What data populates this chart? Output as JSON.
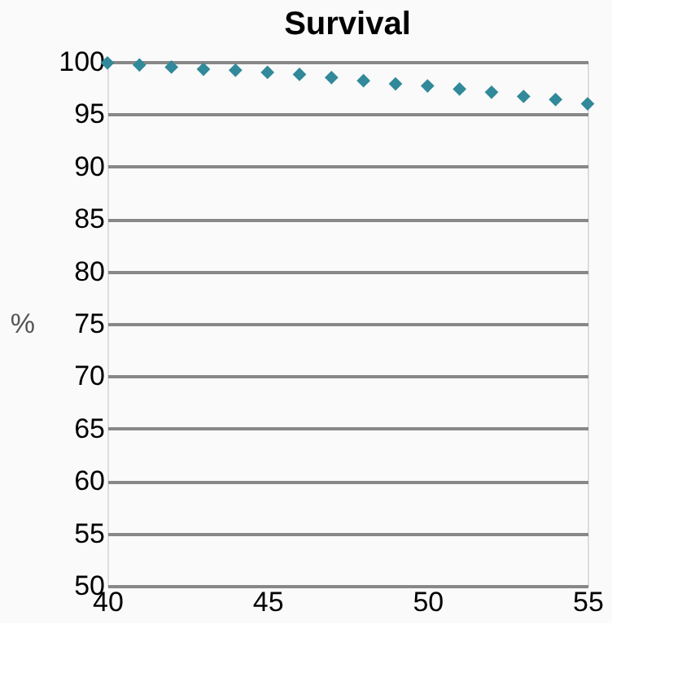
{
  "chart_data": {
    "type": "scatter",
    "title": "Survival",
    "ylabel": "%",
    "x": [
      40,
      41,
      42,
      43,
      44,
      45,
      46,
      47,
      48,
      49,
      50,
      51,
      52,
      53,
      54,
      55
    ],
    "series": [
      {
        "color": "#31899a",
        "values": [
          99.9,
          99.7,
          99.5,
          99.3,
          99.2,
          99.0,
          98.8,
          98.5,
          98.2,
          97.9,
          97.7,
          97.4,
          97.1,
          96.7,
          96.4,
          96.0
        ]
      }
    ],
    "xlim": [
      40,
      55
    ],
    "xticks": [
      40,
      45,
      50,
      55
    ],
    "ylim": [
      50,
      100
    ],
    "yticks": [
      50,
      55,
      60,
      65,
      70,
      75,
      80,
      85,
      90,
      95,
      100
    ],
    "grid": "y",
    "marker": "diamond",
    "legend": false
  }
}
